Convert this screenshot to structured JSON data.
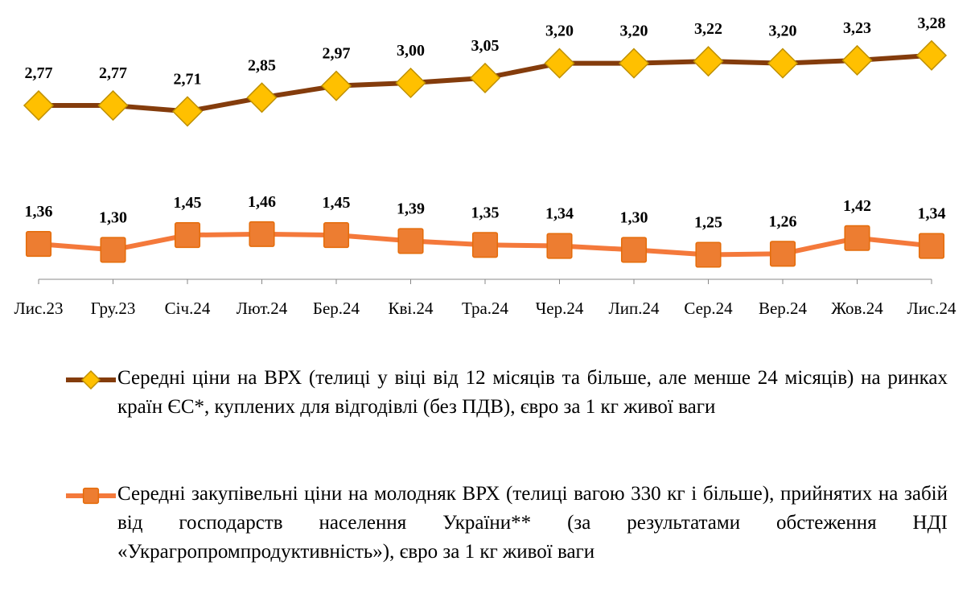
{
  "chart_data": {
    "type": "line",
    "categories": [
      "Лис.23",
      "Гру.23",
      "Січ.24",
      "Лют.24",
      "Бер.24",
      "Кві.24",
      "Тра.24",
      "Чер.24",
      "Лип.24",
      "Сер.24",
      "Вер.24",
      "Жов.24",
      "Лис.24"
    ],
    "series": [
      {
        "name": "Середні ціни на ВРХ (телиці у віці від 12 місяців та більше, але менше 24 місяців) на ринках країн ЄС*, куплених для відгодівлі (без ПДВ), євро за 1 кг живої ваги",
        "color": "#843c0c",
        "marker": "diamond",
        "marker_color": "#ffc000",
        "values": [
          2.77,
          2.77,
          2.71,
          2.85,
          2.97,
          3.0,
          3.05,
          3.2,
          3.2,
          3.22,
          3.2,
          3.23,
          3.28
        ],
        "value_labels": [
          "2,77",
          "2,77",
          "2,71",
          "2,85",
          "2,97",
          "3,00",
          "3,05",
          "3,20",
          "3,20",
          "3,22",
          "3,20",
          "3,23",
          "3,28"
        ]
      },
      {
        "name": "Середні закупівельні ціни на молодняк ВРХ (телиці вагою 330 кг і більше), прийнятих на забій від господарств населення України** (за результатами обстеження НДІ «Украгропромпродуктивність»), євро за 1 кг живої ваги",
        "color": "#f4793b",
        "marker": "square",
        "marker_color": "#ed7d31",
        "values": [
          1.36,
          1.3,
          1.45,
          1.46,
          1.45,
          1.39,
          1.35,
          1.34,
          1.3,
          1.25,
          1.26,
          1.42,
          1.34
        ],
        "value_labels": [
          "1,36",
          "1,30",
          "1,45",
          "1,46",
          "1,45",
          "1,39",
          "1,35",
          "1,34",
          "1,30",
          "1,25",
          "1,26",
          "1,42",
          "1,34"
        ]
      }
    ],
    "ylim": [
      1,
      3.5
    ]
  }
}
